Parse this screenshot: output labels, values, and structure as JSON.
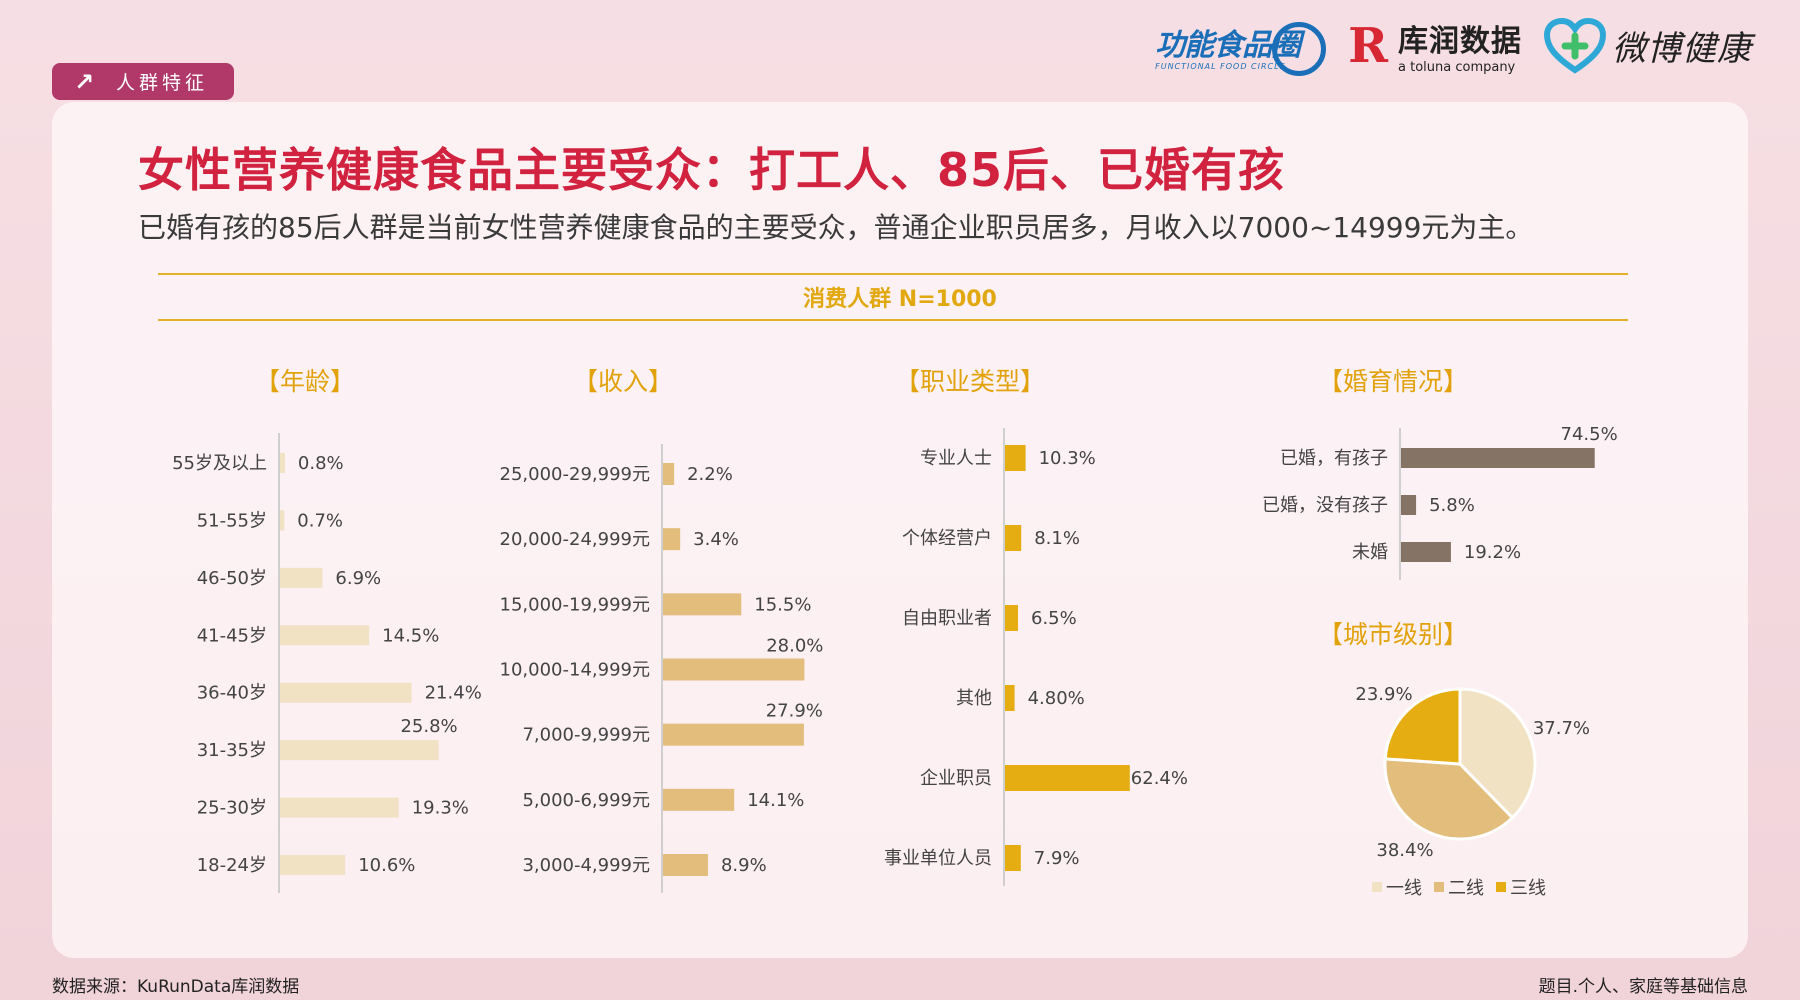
{
  "tag": {
    "label": "人群特征",
    "icon": "arrow-up-right-icon"
  },
  "logos": {
    "functional_food": {
      "name": "功能食品圈",
      "sub": "FUNCTIONAL FOOD CIRCLE"
    },
    "kurun": {
      "mark": "R",
      "name": "库润数据",
      "sub": "a toluna company"
    },
    "weibo": {
      "name": "微博健康",
      "icon": "heart-plus-icon"
    }
  },
  "title": "女性营养健康食品主要受众：打工人、85后、已婚有孩",
  "subtitle": "已婚有孩的85后人群是当前女性营养健康食品的主要受众，普通企业职员居多，月收入以7000~14999元为主。",
  "consumer_label": "消费人群 N=1000",
  "footer": {
    "source": "数据来源：KuRunData库润数据",
    "question": "题目.个人、家庭等基础信息"
  },
  "colors": {
    "title": "#d1223f",
    "accent": "#e2b128",
    "age_bar": "#f1e2c4",
    "income_bar": "#e2bd7c",
    "job_bar": "#e6ad12",
    "marriage_bar": "#857466",
    "pie": [
      "#f1e2c4",
      "#e2bd7c",
      "#e6ad12"
    ]
  },
  "chart_data": [
    {
      "id": "age",
      "type": "bar",
      "orientation": "horizontal",
      "title": "【年龄】",
      "categories": [
        "55岁及以上",
        "51-55岁",
        "46-50岁",
        "41-45岁",
        "36-40岁",
        "31-35岁",
        "25-30岁",
        "18-24岁"
      ],
      "values": [
        0.8,
        0.7,
        6.9,
        14.5,
        21.4,
        25.8,
        19.3,
        10.6
      ],
      "labels": [
        "0.8%",
        "0.7%",
        "6.9%",
        "14.5%",
        "21.4%",
        "25.8%",
        "19.3%",
        "10.6%"
      ],
      "unit": "%"
    },
    {
      "id": "income",
      "type": "bar",
      "orientation": "horizontal",
      "title": "【收入】",
      "categories": [
        "25,000-29,999元",
        "20,000-24,999元",
        "15,000-19,999元",
        "10,000-14,999元",
        "7,000-9,999元",
        "5,000-6,999元",
        "3,000-4,999元"
      ],
      "values": [
        2.2,
        3.4,
        15.5,
        28.0,
        27.9,
        14.1,
        8.9
      ],
      "labels": [
        "2.2%",
        "3.4%",
        "15.5%",
        "28.0%",
        "27.9%",
        "14.1%",
        "8.9%"
      ],
      "unit": "%"
    },
    {
      "id": "occupation",
      "type": "bar",
      "orientation": "horizontal",
      "title": "【职业类型】",
      "categories": [
        "专业人士",
        "个体经营户",
        "自由职业者",
        "其他",
        "企业职员",
        "事业单位人员"
      ],
      "values": [
        10.3,
        8.1,
        6.5,
        4.8,
        62.4,
        7.9
      ],
      "labels": [
        "10.3%",
        "8.1%",
        "6.5%",
        "4.80%",
        "62.4%",
        "7.9%"
      ],
      "unit": "%"
    },
    {
      "id": "marriage",
      "type": "bar",
      "orientation": "horizontal",
      "title": "【婚育情况】",
      "categories": [
        "已婚，有孩子",
        "已婚，没有孩子",
        "未婚"
      ],
      "values": [
        74.5,
        5.8,
        19.2
      ],
      "labels": [
        "74.5%",
        "5.8%",
        "19.2%"
      ],
      "unit": "%"
    },
    {
      "id": "city",
      "type": "pie",
      "title": "【城市级别】",
      "categories": [
        "一线",
        "二线",
        "三线"
      ],
      "values": [
        37.7,
        38.4,
        23.9
      ],
      "labels": [
        "37.7%",
        "38.4%",
        "23.9%"
      ],
      "legend": "bottom"
    }
  ]
}
